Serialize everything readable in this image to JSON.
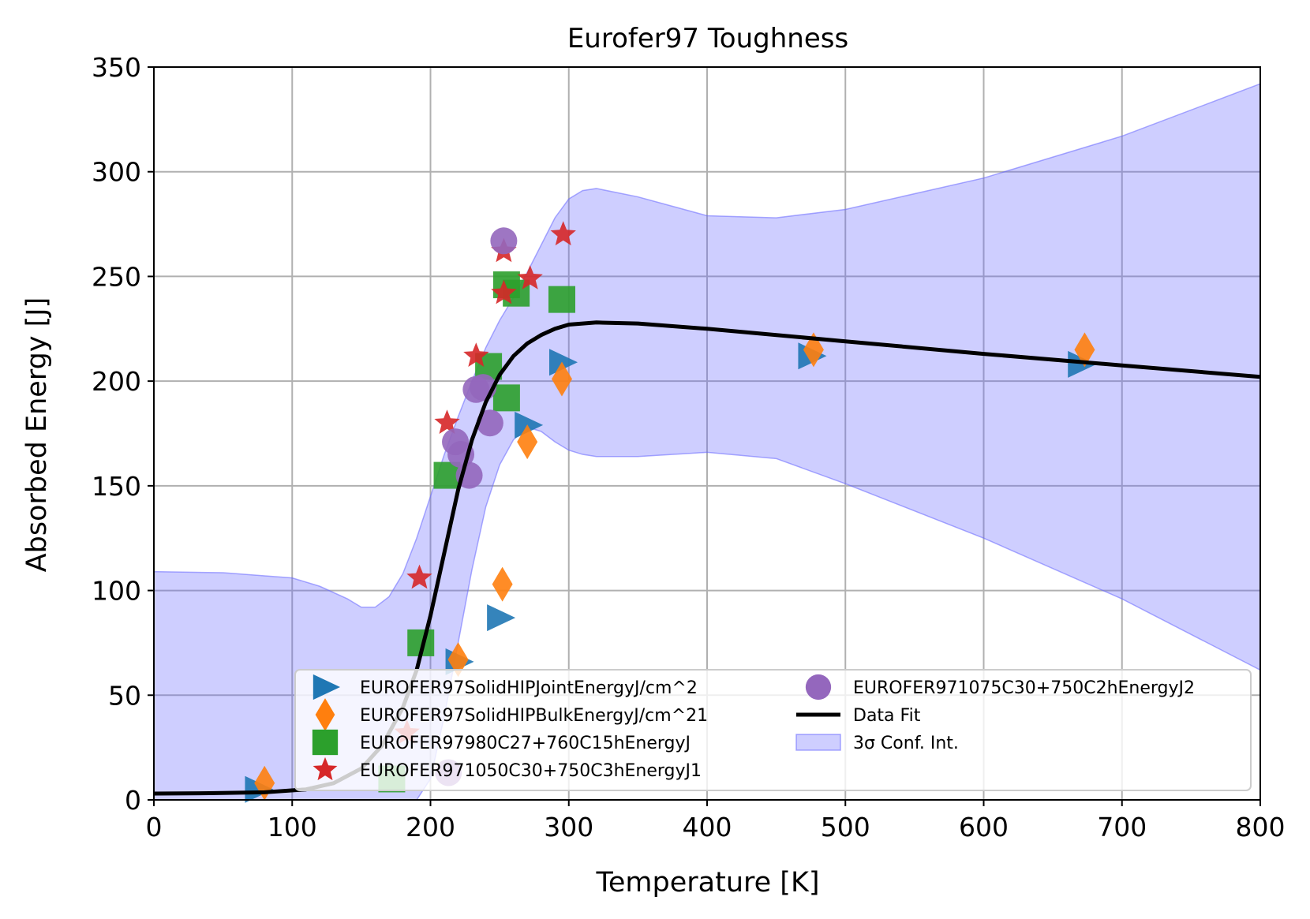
{
  "chart_data": {
    "type": "scatter",
    "title": "Eurofer97 Toughness",
    "xlabel": "Temperature [K]",
    "ylabel": "Absorbed Energy [J]",
    "xlim": [
      0,
      800
    ],
    "ylim": [
      0,
      350
    ],
    "xticks": [
      0,
      100,
      200,
      300,
      400,
      500,
      600,
      700,
      800
    ],
    "yticks": [
      0,
      50,
      100,
      150,
      200,
      250,
      300,
      350
    ],
    "grid": true,
    "legend_position": "lower-right",
    "series": [
      {
        "name": "EUROFER97SolidHIPJointEnergyJ/cm^2",
        "marker": "triangle-right",
        "color": "#1f77b4",
        "points": [
          [
            75,
            5
          ],
          [
            220,
            66
          ],
          [
            250,
            87
          ],
          [
            270,
            179
          ],
          [
            295,
            209
          ],
          [
            475,
            212
          ],
          [
            670,
            208
          ]
        ]
      },
      {
        "name": "EUROFER97SolidHIPBulkEnergyJ/cm^21",
        "marker": "thin-diamond",
        "color": "#ff7f0e",
        "points": [
          [
            80,
            8
          ],
          [
            220,
            67
          ],
          [
            252,
            103
          ],
          [
            270,
            171
          ],
          [
            295,
            201
          ],
          [
            477,
            215
          ],
          [
            673,
            215
          ]
        ]
      },
      {
        "name": "EUROFER97980C27+760C15hEnergyJ",
        "marker": "square",
        "color": "#2ca02c",
        "points": [
          [
            172,
            10
          ],
          [
            193,
            75
          ],
          [
            212,
            155
          ],
          [
            242,
            207
          ],
          [
            255,
            246
          ],
          [
            262,
            242
          ],
          [
            255,
            192
          ],
          [
            295,
            239
          ]
        ]
      },
      {
        "name": "EUROFER971050C30+750C3hEnergyJ1",
        "marker": "star",
        "color": "#d62728",
        "points": [
          [
            183,
            32
          ],
          [
            192,
            106
          ],
          [
            212,
            180
          ],
          [
            233,
            212
          ],
          [
            253,
            242
          ],
          [
            253,
            262
          ],
          [
            272,
            249
          ],
          [
            296,
            270
          ]
        ]
      },
      {
        "name": "EUROFER971075C30+750C2hEnergyJ2",
        "marker": "circle",
        "color": "#9467bd",
        "points": [
          [
            213,
            13
          ],
          [
            218,
            171
          ],
          [
            222,
            165
          ],
          [
            228,
            155
          ],
          [
            233,
            196
          ],
          [
            238,
            197
          ],
          [
            243,
            180
          ],
          [
            253,
            267
          ]
        ]
      }
    ],
    "fit": {
      "name": "Data Fit",
      "color": "#000000",
      "x": [
        0,
        40,
        80,
        110,
        130,
        150,
        165,
        180,
        190,
        200,
        210,
        220,
        230,
        240,
        250,
        260,
        270,
        280,
        290,
        300,
        320,
        350,
        400,
        500,
        600,
        700,
        800
      ],
      "y": [
        3,
        3.2,
        3.6,
        5,
        8,
        15,
        26,
        44,
        62,
        88,
        118,
        148,
        172,
        190,
        203,
        212,
        218,
        222,
        225,
        227,
        228,
        227.5,
        225,
        219,
        213,
        207.5,
        202
      ]
    },
    "band": {
      "name": "3σ Conf. Int.",
      "color": "#6666ff",
      "x": [
        0,
        50,
        100,
        120,
        140,
        150,
        160,
        170,
        180,
        190,
        200,
        210,
        220,
        230,
        240,
        250,
        260,
        270,
        280,
        290,
        300,
        310,
        320,
        350,
        400,
        450,
        500,
        600,
        700,
        800
      ],
      "upper": [
        109,
        108.5,
        106,
        102,
        96,
        92,
        92,
        97,
        108,
        125,
        145,
        165,
        183,
        200,
        216,
        229,
        240,
        252,
        265,
        278,
        287,
        291,
        292,
        288,
        279,
        278,
        282,
        297,
        317,
        342
      ],
      "lower": [
        0,
        0,
        0,
        0,
        0,
        0,
        0,
        0,
        0,
        0,
        10,
        40,
        75,
        110,
        140,
        160,
        172,
        178,
        176,
        171,
        167,
        165,
        164,
        164,
        166,
        163,
        151,
        125,
        96,
        62
      ]
    }
  }
}
